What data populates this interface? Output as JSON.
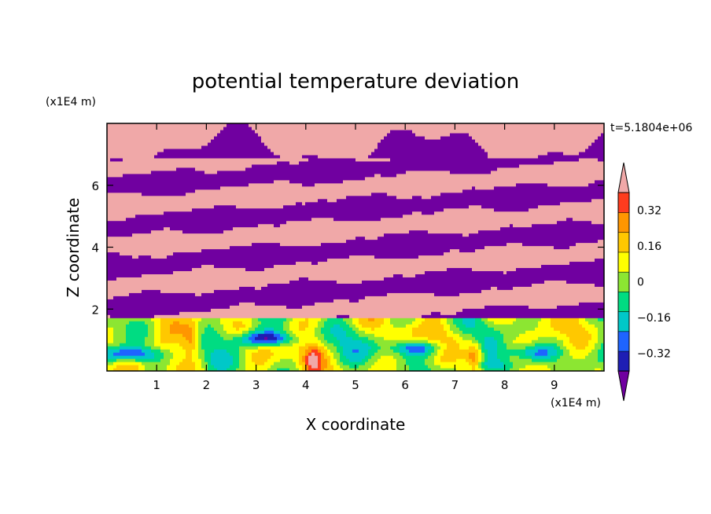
{
  "chart_data": {
    "type": "heatmap",
    "title": "potential temperature deviation",
    "xlabel": "X coordinate",
    "ylabel": "Z coordinate",
    "x_unit": "(x1E4 m)",
    "y_unit": "(x1E4 m)",
    "time_label": "t=5.1804e+06",
    "xlim": [
      0,
      10
    ],
    "ylim": [
      0,
      8
    ],
    "x_ticks": [
      1,
      2,
      3,
      4,
      5,
      6,
      7,
      8,
      9
    ],
    "y_ticks": [
      2,
      4,
      6
    ],
    "colorbar": {
      "levels": [
        -0.4,
        -0.32,
        -0.24,
        -0.16,
        -0.08,
        0,
        0.08,
        0.16,
        0.24,
        0.32,
        0.4
      ],
      "tick_labels": [
        "0.32",
        "0.16",
        "0",
        "−0.16",
        "−0.32"
      ],
      "tick_values": [
        0.32,
        0.16,
        0,
        -0.16,
        -0.32
      ],
      "colors": [
        "#7000a0",
        "#1e1eb4",
        "#1e64ff",
        "#00c8c8",
        "#00dc82",
        "#8ce632",
        "#ffff00",
        "#ffc800",
        "#ff9600",
        "#ff3c1e",
        "#f0a8a8"
      ],
      "extend": "both"
    }
  }
}
